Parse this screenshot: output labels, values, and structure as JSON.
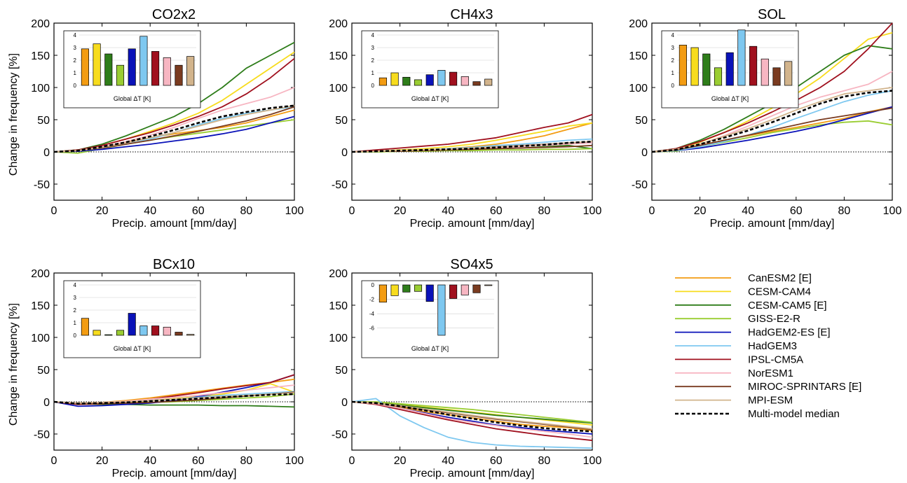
{
  "figure": {
    "y_axis_label": "Change in frequency [%]",
    "x_axis_label": "Precip. amount [mm/day]",
    "inset_label": "Global ΔT [K]"
  },
  "legend": {
    "items": [
      {
        "label": "CanESM2 [E]",
        "color": "#F39C12",
        "dashed": false
      },
      {
        "label": "CESM-CAM4",
        "color": "#F7DC1E",
        "dashed": false
      },
      {
        "label": "CESM-CAM5 [E]",
        "color": "#2E7D1A",
        "dashed": false
      },
      {
        "label": "GISS-E2-R",
        "color": "#9ACD32",
        "dashed": false
      },
      {
        "label": "HadGEM2-ES [E]",
        "color": "#0A12B8",
        "dashed": false
      },
      {
        "label": "HadGEM3",
        "color": "#7EC8F0",
        "dashed": false
      },
      {
        "label": "IPSL-CM5A",
        "color": "#A0101E",
        "dashed": false
      },
      {
        "label": "NorESM1",
        "color": "#F7B6C2",
        "dashed": false
      },
      {
        "label": "MIROC-SPRINTARS [E]",
        "color": "#7A3B20",
        "dashed": false
      },
      {
        "label": "MPI-ESM",
        "color": "#D2B48C",
        "dashed": false
      },
      {
        "label": "Multi-model median",
        "color": "#000000",
        "dashed": true
      }
    ]
  },
  "chart_data": [
    {
      "type": "line",
      "title": "CO2x2",
      "xlabel": "Precip. amount [mm/day]",
      "ylabel": "Change in frequency [%]",
      "xlim": [
        0,
        100
      ],
      "ylim": [
        -75,
        200
      ],
      "x": [
        0,
        10,
        20,
        30,
        40,
        50,
        60,
        70,
        80,
        90,
        100
      ],
      "series": [
        {
          "name": "CanESM2 [E]",
          "values": [
            0,
            2,
            8,
            15,
            22,
            28,
            33,
            38,
            45,
            55,
            65
          ]
        },
        {
          "name": "CESM-CAM4",
          "values": [
            0,
            3,
            10,
            20,
            32,
            45,
            60,
            80,
            105,
            130,
            155
          ]
        },
        {
          "name": "CESM-CAM5 [E]",
          "values": [
            0,
            3,
            12,
            25,
            40,
            55,
            75,
            100,
            130,
            150,
            170
          ]
        },
        {
          "name": "GISS-E2-R",
          "values": [
            0,
            -2,
            5,
            12,
            18,
            24,
            29,
            34,
            40,
            45,
            50
          ]
        },
        {
          "name": "HadGEM2-ES [E]",
          "values": [
            0,
            1,
            4,
            8,
            12,
            17,
            22,
            28,
            35,
            45,
            55
          ]
        },
        {
          "name": "HadGEM3",
          "values": [
            0,
            2,
            6,
            12,
            20,
            30,
            42,
            52,
            60,
            65,
            70
          ]
        },
        {
          "name": "IPSL-CM5A",
          "values": [
            0,
            3,
            10,
            20,
            30,
            42,
            55,
            70,
            90,
            115,
            145
          ]
        },
        {
          "name": "NorESM1",
          "values": [
            0,
            2,
            8,
            16,
            26,
            38,
            52,
            65,
            75,
            85,
            100
          ]
        },
        {
          "name": "MIROC-SPRINTARS [E]",
          "values": [
            0,
            2,
            6,
            12,
            18,
            25,
            32,
            40,
            48,
            58,
            70
          ]
        },
        {
          "name": "MPI-ESM",
          "values": [
            0,
            2,
            7,
            14,
            22,
            30,
            40,
            50,
            58,
            65,
            72
          ]
        },
        {
          "name": "Multi-model median",
          "values": [
            0,
            2,
            8,
            15,
            24,
            34,
            45,
            55,
            62,
            68,
            72
          ]
        }
      ],
      "inset": {
        "ylim": [
          0,
          4
        ],
        "yticks": [
          0,
          1,
          2,
          3,
          4
        ],
        "values": [
          2.9,
          3.3,
          2.5,
          1.6,
          2.9,
          3.9,
          2.7,
          2.2,
          1.6,
          2.3
        ]
      }
    },
    {
      "type": "line",
      "title": "CH4x3",
      "xlabel": "Precip. amount [mm/day]",
      "ylabel": "",
      "xlim": [
        0,
        100
      ],
      "ylim": [
        -75,
        200
      ],
      "x": [
        0,
        10,
        20,
        30,
        40,
        50,
        60,
        70,
        80,
        90,
        100
      ],
      "series": [
        {
          "name": "CanESM2 [E]",
          "values": [
            0,
            1,
            2,
            3,
            5,
            8,
            12,
            18,
            25,
            35,
            45
          ]
        },
        {
          "name": "CESM-CAM4",
          "values": [
            0,
            1,
            3,
            5,
            8,
            12,
            18,
            25,
            32,
            40,
            45
          ]
        },
        {
          "name": "CESM-CAM5 [E]",
          "values": [
            0,
            0,
            1,
            2,
            3,
            4,
            5,
            6,
            8,
            10,
            5
          ]
        },
        {
          "name": "GISS-E2-R",
          "values": [
            0,
            0,
            1,
            1,
            2,
            2,
            3,
            3,
            4,
            4,
            5
          ]
        },
        {
          "name": "HadGEM2-ES [E]",
          "values": [
            0,
            1,
            2,
            3,
            4,
            6,
            8,
            10,
            12,
            14,
            15
          ]
        },
        {
          "name": "HadGEM3",
          "values": [
            0,
            1,
            2,
            3,
            5,
            7,
            10,
            12,
            15,
            18,
            20
          ]
        },
        {
          "name": "IPSL-CM5A",
          "values": [
            0,
            3,
            6,
            9,
            12,
            17,
            22,
            30,
            38,
            45,
            58
          ]
        },
        {
          "name": "NorESM1",
          "values": [
            0,
            1,
            2,
            3,
            4,
            5,
            6,
            8,
            10,
            12,
            14
          ]
        },
        {
          "name": "MIROC-SPRINTARS [E]",
          "values": [
            0,
            1,
            1,
            2,
            3,
            4,
            5,
            6,
            7,
            8,
            10
          ]
        },
        {
          "name": "MPI-ESM",
          "values": [
            0,
            1,
            2,
            3,
            4,
            6,
            8,
            10,
            12,
            14,
            16
          ]
        },
        {
          "name": "Multi-model median",
          "values": [
            0,
            1,
            2,
            3,
            4,
            5,
            7,
            9,
            11,
            14,
            16
          ]
        }
      ],
      "inset": {
        "ylim": [
          0,
          4
        ],
        "yticks": [
          0,
          1,
          2,
          3,
          4
        ],
        "values": [
          0.6,
          1.0,
          0.65,
          0.45,
          0.85,
          1.2,
          1.05,
          0.7,
          0.3,
          0.5
        ]
      }
    },
    {
      "type": "line",
      "title": "SOL",
      "xlabel": "Precip. amount [mm/day]",
      "ylabel": "",
      "xlim": [
        0,
        100
      ],
      "ylim": [
        -75,
        200
      ],
      "x": [
        0,
        10,
        20,
        30,
        40,
        50,
        60,
        70,
        80,
        90,
        100
      ],
      "series": [
        {
          "name": "CanESM2 [E]",
          "values": [
            0,
            3,
            10,
            18,
            25,
            32,
            38,
            45,
            52,
            62,
            70
          ]
        },
        {
          "name": "CESM-CAM4",
          "values": [
            0,
            4,
            15,
            30,
            48,
            68,
            90,
            115,
            145,
            175,
            185
          ]
        },
        {
          "name": "CESM-CAM5 [E]",
          "values": [
            0,
            5,
            18,
            35,
            55,
            75,
            100,
            125,
            150,
            165,
            160
          ]
        },
        {
          "name": "GISS-E2-R",
          "values": [
            0,
            1,
            8,
            15,
            22,
            30,
            36,
            42,
            46,
            48,
            42
          ]
        },
        {
          "name": "HadGEM2-ES [E]",
          "values": [
            0,
            2,
            6,
            12,
            18,
            25,
            32,
            40,
            50,
            60,
            70
          ]
        },
        {
          "name": "HadGEM3",
          "values": [
            0,
            2,
            8,
            16,
            26,
            38,
            52,
            65,
            78,
            88,
            95
          ]
        },
        {
          "name": "IPSL-CM5A",
          "values": [
            0,
            5,
            16,
            30,
            45,
            62,
            80,
            100,
            125,
            160,
            200
          ]
        },
        {
          "name": "NorESM1",
          "values": [
            0,
            3,
            12,
            25,
            40,
            56,
            72,
            85,
            95,
            105,
            125
          ]
        },
        {
          "name": "MIROC-SPRINTARS [E]",
          "values": [
            0,
            3,
            10,
            18,
            26,
            34,
            42,
            50,
            56,
            62,
            68
          ]
        },
        {
          "name": "MPI-ESM",
          "values": [
            0,
            4,
            12,
            24,
            36,
            50,
            65,
            78,
            90,
            95,
            100
          ]
        },
        {
          "name": "Multi-model median",
          "values": [
            0,
            3,
            12,
            22,
            33,
            46,
            60,
            75,
            86,
            92,
            95
          ]
        }
      ],
      "inset": {
        "ylim": [
          0,
          4
        ],
        "yticks": [
          0,
          1,
          2,
          3,
          4
        ],
        "values": [
          3.2,
          3.0,
          2.5,
          1.4,
          2.6,
          4.4,
          3.1,
          2.1,
          1.4,
          1.9
        ]
      }
    },
    {
      "type": "line",
      "title": "BCx10",
      "xlabel": "Precip. amount [mm/day]",
      "ylabel": "Change in frequency [%]",
      "xlim": [
        0,
        100
      ],
      "ylim": [
        -75,
        200
      ],
      "x": [
        0,
        10,
        20,
        30,
        40,
        50,
        60,
        70,
        80,
        90,
        100
      ],
      "series": [
        {
          "name": "CanESM2 [E]",
          "values": [
            0,
            -2,
            -1,
            2,
            6,
            11,
            16,
            21,
            26,
            30,
            35
          ]
        },
        {
          "name": "CESM-CAM4",
          "values": [
            0,
            -3,
            -3,
            -1,
            2,
            5,
            8,
            12,
            18,
            28,
            15
          ]
        },
        {
          "name": "CESM-CAM5 [E]",
          "values": [
            0,
            -3,
            -4,
            -4,
            -5,
            -5,
            -5,
            -6,
            -6,
            -7,
            -8
          ]
        },
        {
          "name": "GISS-E2-R",
          "values": [
            0,
            -2,
            -2,
            -2,
            -1,
            0,
            2,
            4,
            6,
            8,
            12
          ]
        },
        {
          "name": "HadGEM2-ES [E]",
          "values": [
            0,
            -7,
            -6,
            -4,
            -2,
            2,
            8,
            15,
            22,
            30,
            42
          ]
        },
        {
          "name": "HadGEM3",
          "values": [
            0,
            -2,
            -2,
            0,
            2,
            4,
            7,
            10,
            12,
            14,
            16
          ]
        },
        {
          "name": "IPSL-CM5A",
          "values": [
            0,
            -4,
            -3,
            0,
            4,
            9,
            14,
            20,
            25,
            30,
            42
          ]
        },
        {
          "name": "NorESM1",
          "values": [
            0,
            -2,
            -1,
            1,
            4,
            7,
            10,
            14,
            18,
            22,
            26
          ]
        },
        {
          "name": "MIROC-SPRINTARS [E]",
          "values": [
            0,
            -3,
            -3,
            -2,
            -1,
            1,
            3,
            6,
            9,
            12,
            15
          ]
        },
        {
          "name": "MPI-ESM",
          "values": [
            0,
            -2,
            -1,
            0,
            2,
            4,
            6,
            8,
            10,
            12,
            14
          ]
        },
        {
          "name": "Multi-model median",
          "values": [
            0,
            -3,
            -2,
            -1,
            1,
            3,
            5,
            7,
            9,
            11,
            12
          ]
        }
      ],
      "inset": {
        "ylim": [
          0,
          4
        ],
        "yticks": [
          0,
          1,
          2,
          3,
          4
        ],
        "values": [
          1.35,
          0.4,
          0.05,
          0.4,
          1.75,
          0.75,
          0.75,
          0.65,
          0.25,
          0.08
        ]
      }
    },
    {
      "type": "line",
      "title": "SO4x5",
      "xlabel": "Precip. amount [mm/day]",
      "ylabel": "",
      "xlim": [
        0,
        100
      ],
      "ylim": [
        -75,
        200
      ],
      "x": [
        0,
        10,
        20,
        30,
        40,
        50,
        60,
        70,
        80,
        90,
        100
      ],
      "series": [
        {
          "name": "CanESM2 [E]",
          "values": [
            0,
            -2,
            -8,
            -15,
            -20,
            -25,
            -30,
            -35,
            -38,
            -40,
            -45
          ]
        },
        {
          "name": "CESM-CAM4",
          "values": [
            0,
            -1,
            -4,
            -8,
            -12,
            -16,
            -20,
            -24,
            -28,
            -32,
            -36
          ]
        },
        {
          "name": "CESM-CAM5 [E]",
          "values": [
            0,
            -2,
            -5,
            -9,
            -13,
            -17,
            -21,
            -24,
            -27,
            -30,
            -33
          ]
        },
        {
          "name": "GISS-E2-R",
          "values": [
            0,
            0,
            -3,
            -6,
            -9,
            -12,
            -16,
            -20,
            -24,
            -28,
            -32
          ]
        },
        {
          "name": "HadGEM2-ES [E]",
          "values": [
            0,
            -3,
            -10,
            -17,
            -24,
            -30,
            -36,
            -40,
            -44,
            -47,
            -50
          ]
        },
        {
          "name": "HadGEM3",
          "values": [
            0,
            5,
            -22,
            -40,
            -55,
            -63,
            -67,
            -69,
            -70,
            -71,
            -72
          ]
        },
        {
          "name": "IPSL-CM5A",
          "values": [
            0,
            -4,
            -12,
            -20,
            -28,
            -35,
            -42,
            -47,
            -52,
            -56,
            -60
          ]
        },
        {
          "name": "NorESM1",
          "values": [
            0,
            -3,
            -10,
            -18,
            -26,
            -32,
            -37,
            -42,
            -46,
            -50,
            -55
          ]
        },
        {
          "name": "MIROC-SPRINTARS [E]",
          "values": [
            0,
            -2,
            -7,
            -12,
            -17,
            -22,
            -27,
            -31,
            -35,
            -39,
            -43
          ]
        },
        {
          "name": "MPI-ESM",
          "values": [
            0,
            -2,
            -6,
            -11,
            -16,
            -21,
            -26,
            -30,
            -34,
            -38,
            -42
          ]
        },
        {
          "name": "Multi-model median",
          "values": [
            0,
            -2,
            -7,
            -13,
            -20,
            -26,
            -32,
            -37,
            -41,
            -44,
            -46
          ]
        }
      ],
      "inset": {
        "ylim": [
          -7,
          0
        ],
        "yticks": [
          0,
          -2,
          -4,
          -6
        ],
        "values": [
          -2.4,
          -1.5,
          -1.0,
          -0.9,
          -2.3,
          -7.0,
          -1.9,
          -1.4,
          -1.1,
          -0.1
        ]
      }
    }
  ]
}
